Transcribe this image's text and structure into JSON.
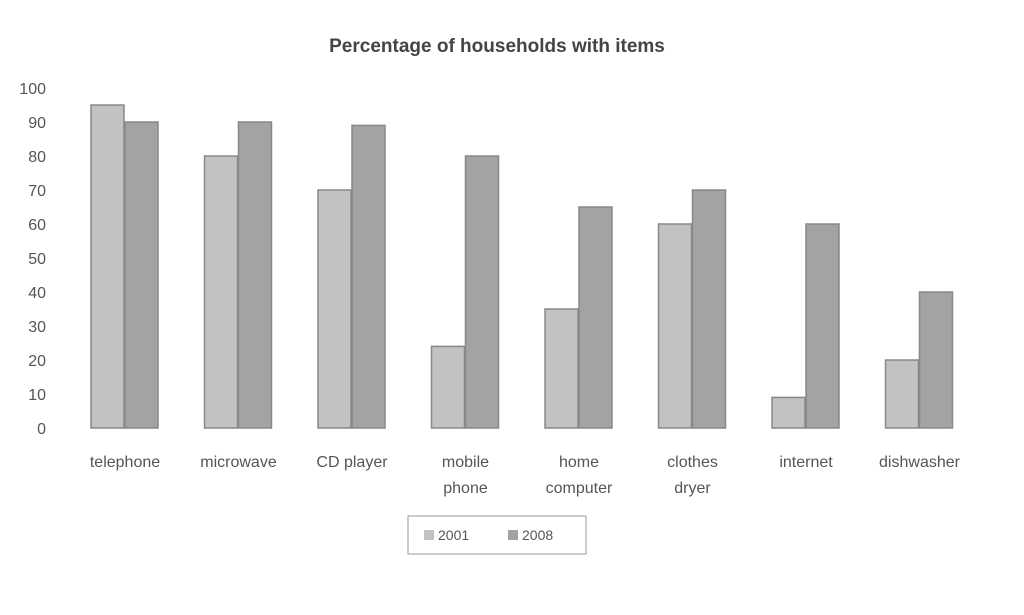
{
  "chart_data": {
    "type": "bar",
    "title": "Percentage of households with items",
    "xlabel": "",
    "ylabel": "",
    "ylim": [
      0,
      100
    ],
    "yticks": [
      "0",
      "10",
      "20",
      "30",
      "40",
      "50",
      "60",
      "70",
      "80",
      "90",
      "100"
    ],
    "categories": [
      [
        "telephone"
      ],
      [
        "microwave"
      ],
      [
        "CD player"
      ],
      [
        "mobile",
        "phone"
      ],
      [
        "home",
        "computer"
      ],
      [
        "clothes",
        "dryer"
      ],
      [
        "internet"
      ],
      [
        "dishwasher"
      ]
    ],
    "series": [
      {
        "name": "2001",
        "color": "#c2c2c2",
        "values": [
          95,
          80,
          70,
          24,
          35,
          60,
          9,
          20
        ]
      },
      {
        "name": "2008",
        "color": "#a3a3a3",
        "values": [
          90,
          90,
          89,
          80,
          65,
          70,
          60,
          40
        ]
      }
    ],
    "legend_position": "bottom",
    "grid": false
  }
}
